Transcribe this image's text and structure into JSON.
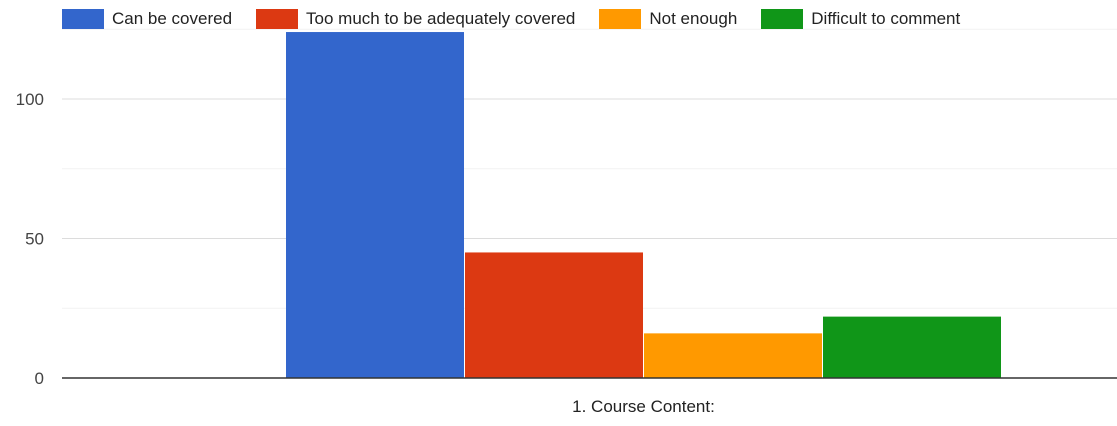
{
  "chart_data": {
    "type": "bar",
    "categories": [
      "1. Course Content:"
    ],
    "series": [
      {
        "name": "Can be covered",
        "values": [
          124
        ],
        "color": "#3366cc"
      },
      {
        "name": "Too much to be adequately covered",
        "values": [
          45
        ],
        "color": "#dc3912"
      },
      {
        "name": "Not enough",
        "values": [
          16
        ],
        "color": "#ff9900"
      },
      {
        "name": "Difficult to comment",
        "values": [
          22
        ],
        "color": "#109618"
      }
    ],
    "y_ticks": [
      "0",
      "50",
      "100"
    ],
    "ylim": [
      0,
      125
    ],
    "grid": true,
    "legend_position": "top"
  }
}
